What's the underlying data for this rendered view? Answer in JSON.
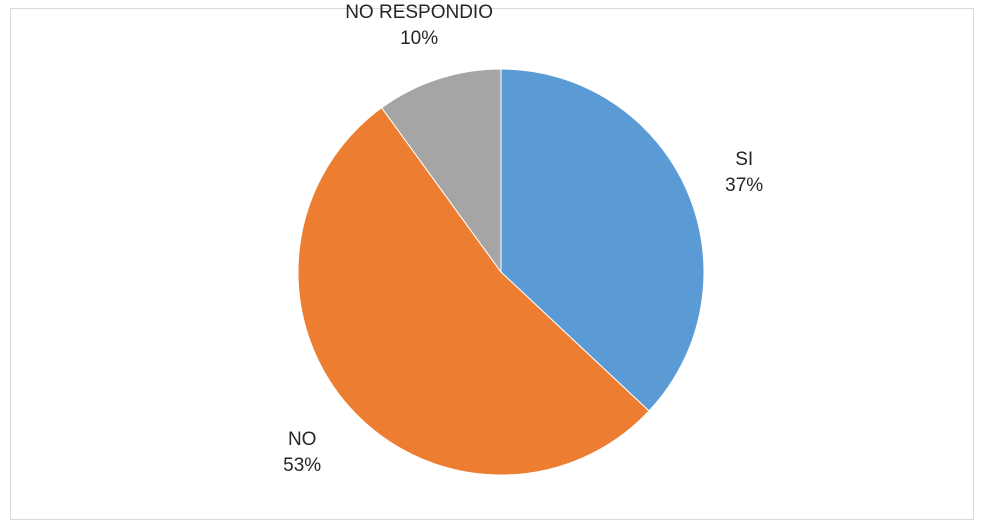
{
  "chart_data": {
    "type": "pie",
    "title": "",
    "categories": [
      "SI",
      "NO",
      "NO RESPONDIO"
    ],
    "values": [
      37,
      53,
      10
    ],
    "value_labels": [
      "37%",
      "53%",
      "10%"
    ],
    "colors": [
      "#5b9bd5",
      "#ed7d31",
      "#a5a5a5"
    ],
    "start_angle_deg": 0,
    "direction": "clockwise",
    "legend": "none",
    "data_labels": "outside, category and percent"
  }
}
